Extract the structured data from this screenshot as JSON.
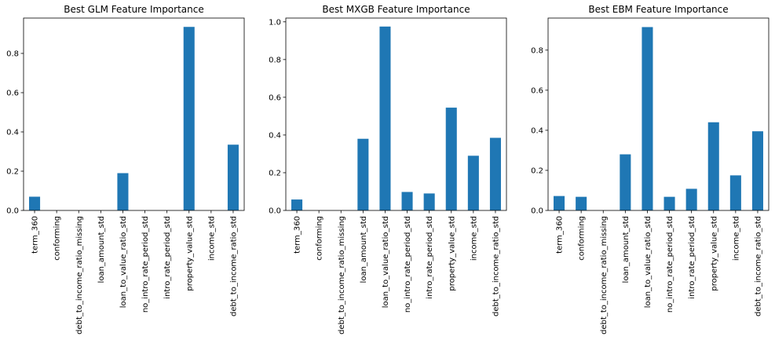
{
  "chart_data": [
    {
      "type": "bar",
      "title": "Best GLM Feature Importance",
      "categories": [
        "term_360",
        "conforming",
        "debt_to_income_ratio_missing",
        "loan_amount_std",
        "loan_to_value_ratio_std",
        "no_intro_rate_period_std",
        "intro_rate_period_std",
        "property_value_std",
        "income_std",
        "debt_to_income_ratio_std"
      ],
      "values": [
        0.07,
        0.0,
        0.0,
        0.0,
        0.19,
        0.0,
        0.0,
        0.935,
        0.0,
        0.335
      ],
      "ylim": [
        0,
        0.98
      ],
      "yticks": [
        0.0,
        0.2,
        0.4,
        0.6,
        0.8
      ],
      "ytick_labels": [
        "0.0",
        "0.2",
        "0.4",
        "0.6",
        "0.8"
      ],
      "xlabel": "",
      "ylabel": "",
      "bar_color": "#1f77b4",
      "grid": false,
      "legend": "none"
    },
    {
      "type": "bar",
      "title": "Best MXGB Feature Importance",
      "categories": [
        "term_360",
        "conforming",
        "debt_to_income_ratio_missing",
        "loan_amount_std",
        "loan_to_value_ratio_std",
        "no_intro_rate_period_std",
        "intro_rate_period_std",
        "property_value_std",
        "income_std",
        "debt_to_income_ratio_std"
      ],
      "values": [
        0.058,
        0.0,
        0.0,
        0.38,
        0.975,
        0.098,
        0.09,
        0.545,
        0.29,
        0.385
      ],
      "ylim": [
        0,
        1.02
      ],
      "yticks": [
        0.0,
        0.2,
        0.4,
        0.6,
        0.8,
        1.0
      ],
      "ytick_labels": [
        "0.0",
        "0.2",
        "0.4",
        "0.6",
        "0.8",
        "1.0"
      ],
      "xlabel": "",
      "ylabel": "",
      "bar_color": "#1f77b4",
      "grid": false,
      "legend": "none"
    },
    {
      "type": "bar",
      "title": "Best EBM Feature Importance",
      "categories": [
        "term_360",
        "conforming",
        "debt_to_income_ratio_missing",
        "loan_amount_std",
        "loan_to_value_ratio_std",
        "no_intro_rate_period_std",
        "intro_rate_period_std",
        "property_value_std",
        "income_std",
        "debt_to_income_ratio_std"
      ],
      "values": [
        0.072,
        0.068,
        0.0,
        0.28,
        0.915,
        0.068,
        0.108,
        0.44,
        0.175,
        0.395
      ],
      "ylim": [
        0,
        0.96
      ],
      "yticks": [
        0.0,
        0.2,
        0.4,
        0.6,
        0.8
      ],
      "ytick_labels": [
        "0.0",
        "0.2",
        "0.4",
        "0.6",
        "0.8"
      ],
      "xlabel": "",
      "ylabel": "",
      "bar_color": "#1f77b4",
      "grid": false,
      "legend": "none"
    }
  ]
}
